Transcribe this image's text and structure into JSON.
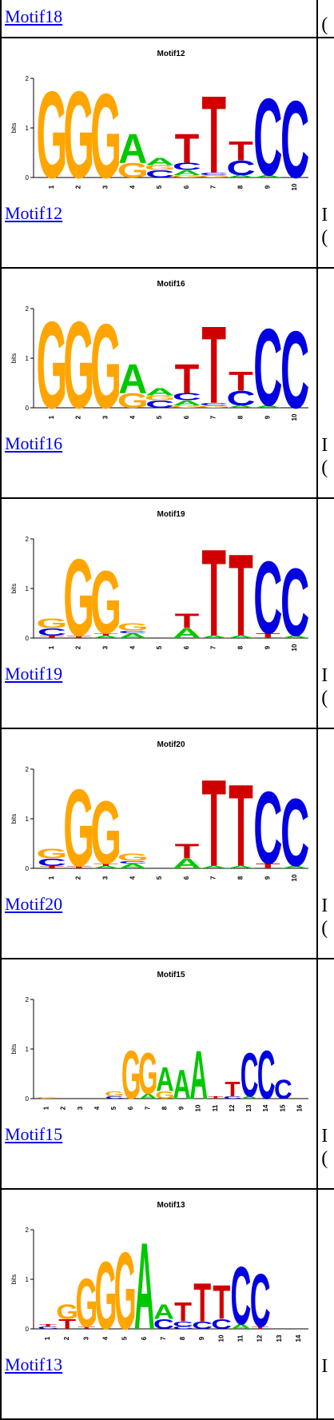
{
  "top_row": {
    "link": "Motif18",
    "side_glyph": "("
  },
  "rows": [
    {
      "title": "Motif12",
      "link": "Motif12",
      "side": [
        "I",
        "("
      ],
      "ticks": [
        "1",
        "2",
        "3",
        "4",
        "5",
        "6",
        "7",
        "8",
        "9",
        "10"
      ]
    },
    {
      "title": "Motif16",
      "link": "Motif16",
      "side": [
        "I",
        "("
      ],
      "ticks": [
        "1",
        "2",
        "3",
        "4",
        "5",
        "6",
        "7",
        "8",
        "9",
        "10"
      ]
    },
    {
      "title": "Motif19",
      "link": "Motif19",
      "side": [
        "I",
        "("
      ],
      "ticks": [
        "1",
        "2",
        "3",
        "4",
        "5",
        "6",
        "7",
        "8",
        "9",
        "10"
      ]
    },
    {
      "title": "Motif20",
      "link": "Motif20",
      "side": [
        "I",
        "("
      ],
      "ticks": [
        "1",
        "2",
        "3",
        "4",
        "5",
        "6",
        "7",
        "8",
        "9",
        "10"
      ]
    },
    {
      "title": "Motif15",
      "link": "Motif15",
      "side": [
        "I",
        "("
      ],
      "ticks": [
        "1",
        "2",
        "3",
        "4",
        "5",
        "6",
        "7",
        "8",
        "9",
        "10",
        "11",
        "12",
        "13",
        "14",
        "15",
        "16"
      ]
    },
    {
      "title": "Motif13",
      "link": "Motif13",
      "side": [
        "I",
        ""
      ],
      "ticks": [
        "1",
        "2",
        "3",
        "4",
        "5",
        "6",
        "7",
        "8",
        "9",
        "10",
        "11",
        "12",
        "13",
        "14"
      ]
    }
  ],
  "axis": {
    "label": "bits",
    "y_ticks": [
      "0",
      "1",
      "2"
    ]
  },
  "colors": {
    "A": "#00c800",
    "C": "#0000e0",
    "G": "#ffa500",
    "T": "#d00000",
    "link": "#0000ee"
  }
}
